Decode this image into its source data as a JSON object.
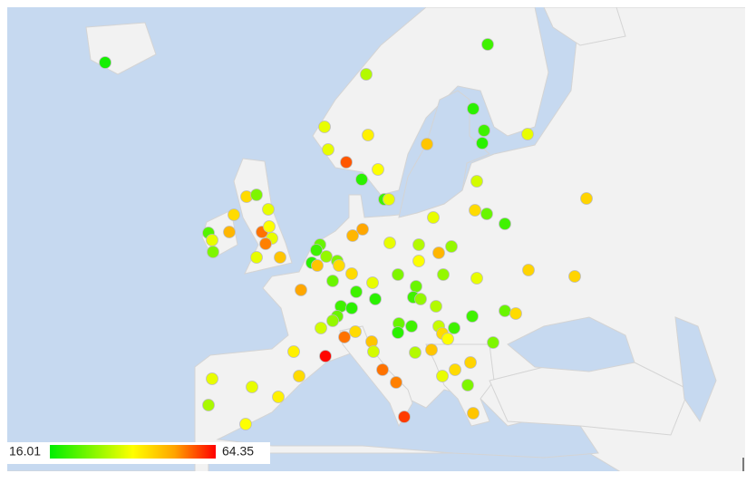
{
  "legend": {
    "min": 16.01,
    "max": 64.35
  },
  "points": [
    {
      "value": 18
    },
    {
      "value": 22
    },
    {
      "value": 33
    },
    {
      "value": 20
    },
    {
      "value": 22
    },
    {
      "value": 20
    },
    {
      "value": 38
    },
    {
      "value": 38
    },
    {
      "value": 38
    },
    {
      "value": 42
    },
    {
      "value": 48
    },
    {
      "value": 58
    },
    {
      "value": 40
    },
    {
      "value": 20
    },
    {
      "value": 22
    },
    {
      "value": 38
    },
    {
      "value": 36
    },
    {
      "value": 46
    },
    {
      "value": 45
    },
    {
      "value": 28
    },
    {
      "value": 38
    },
    {
      "value": 45
    },
    {
      "value": 24
    },
    {
      "value": 38
    },
    {
      "value": 28
    },
    {
      "value": 50
    },
    {
      "value": 56
    },
    {
      "value": 40
    },
    {
      "value": 38
    },
    {
      "value": 55
    },
    {
      "value": 38
    },
    {
      "value": 48
    },
    {
      "value": 38
    },
    {
      "value": 45
    },
    {
      "value": 26
    },
    {
      "value": 22
    },
    {
      "value": 52
    },
    {
      "value": 50
    },
    {
      "value": 38
    },
    {
      "value": 33
    },
    {
      "value": 50
    },
    {
      "value": 30
    },
    {
      "value": 26
    },
    {
      "value": 22
    },
    {
      "value": 20
    },
    {
      "value": 48
    },
    {
      "value": 30
    },
    {
      "value": 28
    },
    {
      "value": 45
    },
    {
      "value": 40
    },
    {
      "value": 45
    },
    {
      "value": 28
    },
    {
      "value": 30
    },
    {
      "value": 38
    },
    {
      "value": 46
    },
    {
      "value": 46
    },
    {
      "value": 52
    },
    {
      "value": 26
    },
    {
      "value": 38
    },
    {
      "value": 22
    },
    {
      "value": 20
    },
    {
      "value": 26
    },
    {
      "value": 22
    },
    {
      "value": 30
    },
    {
      "value": 33
    },
    {
      "value": 22
    },
    {
      "value": 20
    },
    {
      "value": 26
    },
    {
      "value": 30
    },
    {
      "value": 36
    },
    {
      "value": 26
    },
    {
      "value": 45
    },
    {
      "value": 22
    },
    {
      "value": 26
    },
    {
      "value": 22
    },
    {
      "value": 20
    },
    {
      "value": 35
    },
    {
      "value": 22
    },
    {
      "value": 45
    },
    {
      "value": 40
    },
    {
      "value": 56
    },
    {
      "value": 45
    },
    {
      "value": 48
    },
    {
      "value": 36
    },
    {
      "value": 28
    },
    {
      "value": 42
    },
    {
      "value": 64
    },
    {
      "value": 48
    },
    {
      "value": 33
    },
    {
      "value": 46
    },
    {
      "value": 45
    },
    {
      "value": 38
    },
    {
      "value": 56
    },
    {
      "value": 45
    },
    {
      "value": 38
    },
    {
      "value": 38
    },
    {
      "value": 55
    },
    {
      "value": 28
    },
    {
      "value": 42
    },
    {
      "value": 32
    },
    {
      "value": 60
    },
    {
      "value": 48
    },
    {
      "value": 40
    }
  ]
}
